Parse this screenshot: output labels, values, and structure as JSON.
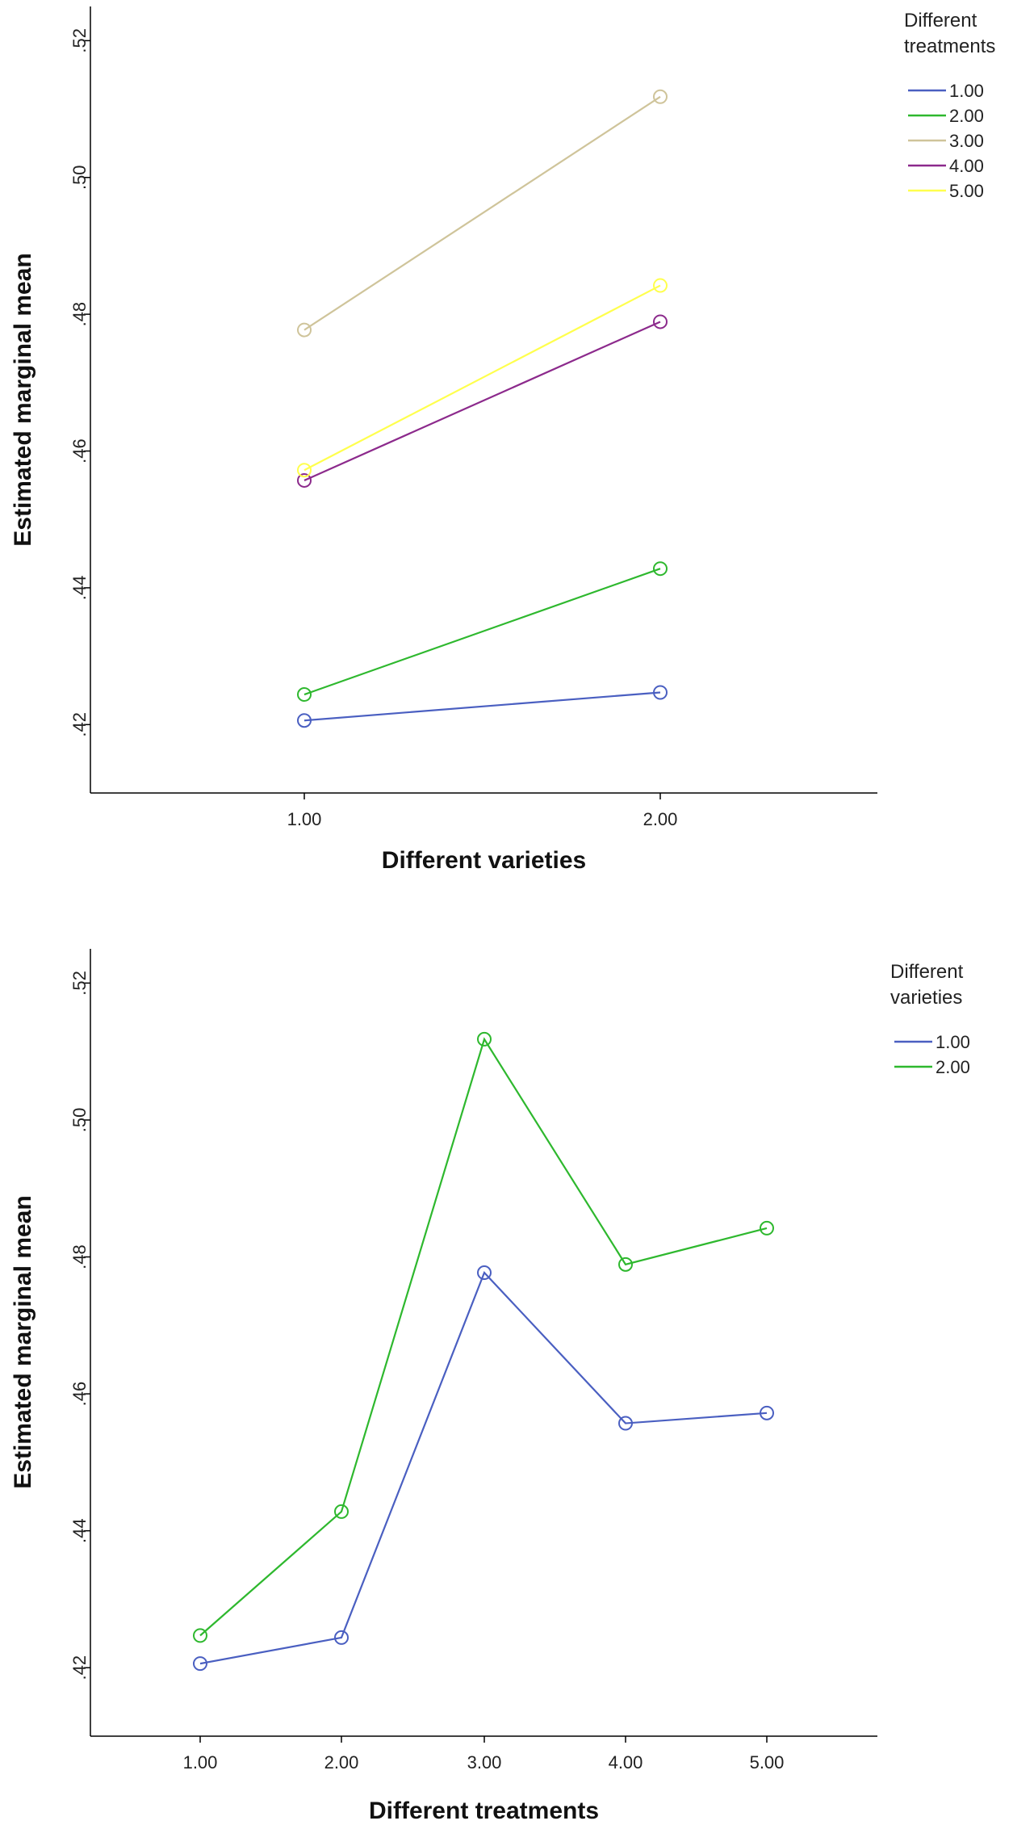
{
  "chart_data": [
    {
      "type": "line",
      "xlabel": "Different varieties",
      "ylabel": "Estimated marginal mean",
      "x": [
        "1.00",
        "2.00"
      ],
      "ylim": [
        0.41,
        0.525
      ],
      "y_ticks": [
        ".42",
        ".44",
        ".46",
        ".48",
        ".50",
        ".52"
      ],
      "legend_title": [
        "Different",
        "treatments"
      ],
      "legend_position": "top-right",
      "series": [
        {
          "name": "1.00",
          "color": "#4a5fc1",
          "values": [
            0.4206,
            0.4247
          ]
        },
        {
          "name": "2.00",
          "color": "#2eb82e",
          "values": [
            0.4244,
            0.4428
          ]
        },
        {
          "name": "3.00",
          "color": "#cfc49a",
          "values": [
            0.4777,
            0.5118
          ]
        },
        {
          "name": "4.00",
          "color": "#8c2a8c",
          "values": [
            0.4557,
            0.4789
          ]
        },
        {
          "name": "5.00",
          "color": "#ffff4d",
          "values": [
            0.4572,
            0.4842
          ]
        }
      ]
    },
    {
      "type": "line",
      "xlabel": "Different treatments",
      "ylabel": "Estimated marginal mean",
      "x": [
        "1.00",
        "2.00",
        "3.00",
        "4.00",
        "5.00"
      ],
      "ylim": [
        0.41,
        0.525
      ],
      "y_ticks": [
        ".42",
        ".44",
        ".46",
        ".48",
        ".50",
        ".52"
      ],
      "legend_title": [
        "Different",
        "varieties"
      ],
      "legend_position": "top-right",
      "series": [
        {
          "name": "1.00",
          "color": "#4a5fc1",
          "values": [
            0.4206,
            0.4244,
            0.4777,
            0.4557,
            0.4572
          ]
        },
        {
          "name": "2.00",
          "color": "#2eb82e",
          "values": [
            0.4247,
            0.4428,
            0.5118,
            0.4789,
            0.4842
          ]
        }
      ]
    }
  ]
}
